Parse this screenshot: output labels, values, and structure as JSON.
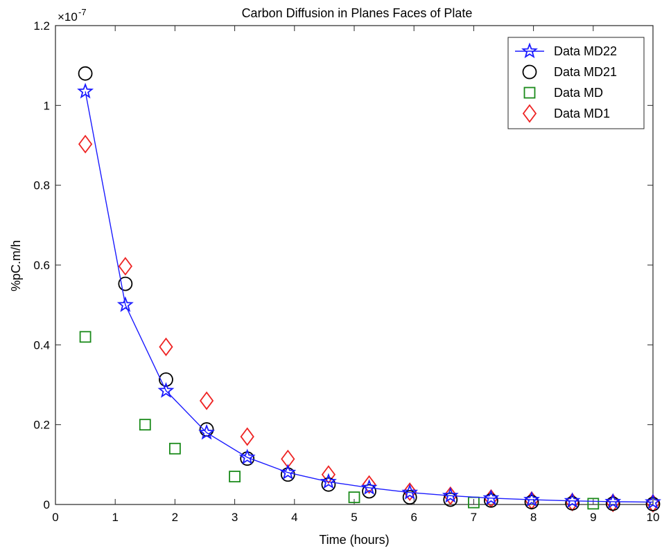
{
  "chart_data": {
    "type": "scatter",
    "title": "Carbon Diffusion in Planes Faces of Plate",
    "xlabel": "Time (hours)",
    "ylabel": "%pC.m/h",
    "y_exponent_label": "×10",
    "y_exponent_power": "-7",
    "xlim": [
      0,
      10
    ],
    "ylim": [
      0,
      1.2
    ],
    "x_ticks": [
      0,
      1,
      2,
      3,
      4,
      5,
      6,
      7,
      8,
      9,
      10
    ],
    "y_ticks": [
      0,
      0.2,
      0.4,
      0.6,
      0.8,
      1,
      1.2
    ],
    "legend_position": "top-right",
    "grid": false,
    "series": [
      {
        "name": "Data MD22",
        "marker": "star",
        "line": true,
        "color": "#1a1aff",
        "x": [
          0.5,
          1.17,
          1.85,
          2.53,
          3.21,
          3.89,
          4.57,
          5.25,
          5.93,
          6.61,
          7.29,
          7.97,
          8.65,
          9.33,
          10.0
        ],
        "y": [
          1.035,
          0.5,
          0.285,
          0.18,
          0.118,
          0.08,
          0.057,
          0.042,
          0.03,
          0.022,
          0.016,
          0.012,
          0.009,
          0.007,
          0.006
        ]
      },
      {
        "name": "Data MD21",
        "marker": "circle",
        "line": false,
        "color": "#000000",
        "x": [
          0.5,
          1.17,
          1.85,
          2.53,
          3.21,
          3.89,
          4.57,
          5.25,
          5.93,
          6.61,
          7.29,
          7.97,
          8.65,
          9.33,
          10.0
        ],
        "y": [
          1.08,
          0.553,
          0.313,
          0.188,
          0.115,
          0.075,
          0.05,
          0.033,
          0.018,
          0.012,
          0.01,
          0.006,
          0.003,
          0.002,
          0.001
        ]
      },
      {
        "name": "Data MD",
        "marker": "square",
        "line": false,
        "color": "#1a8a1a",
        "x": [
          0.5,
          1.5,
          2.0,
          3.0,
          5.0,
          7.0,
          9.0
        ],
        "y": [
          0.42,
          0.2,
          0.14,
          0.07,
          0.018,
          0.005,
          0.002
        ]
      },
      {
        "name": "Data MD1",
        "marker": "diamond",
        "line": false,
        "color": "#ee2222",
        "x": [
          0.5,
          1.17,
          1.85,
          2.53,
          3.21,
          3.89,
          4.57,
          5.25,
          5.93,
          6.61,
          7.29,
          7.97,
          8.65,
          9.33,
          10.0
        ],
        "y": [
          0.903,
          0.597,
          0.395,
          0.26,
          0.17,
          0.114,
          0.075,
          0.05,
          0.032,
          0.022,
          0.015,
          0.01,
          0.006,
          0.004,
          0.003
        ]
      }
    ]
  }
}
